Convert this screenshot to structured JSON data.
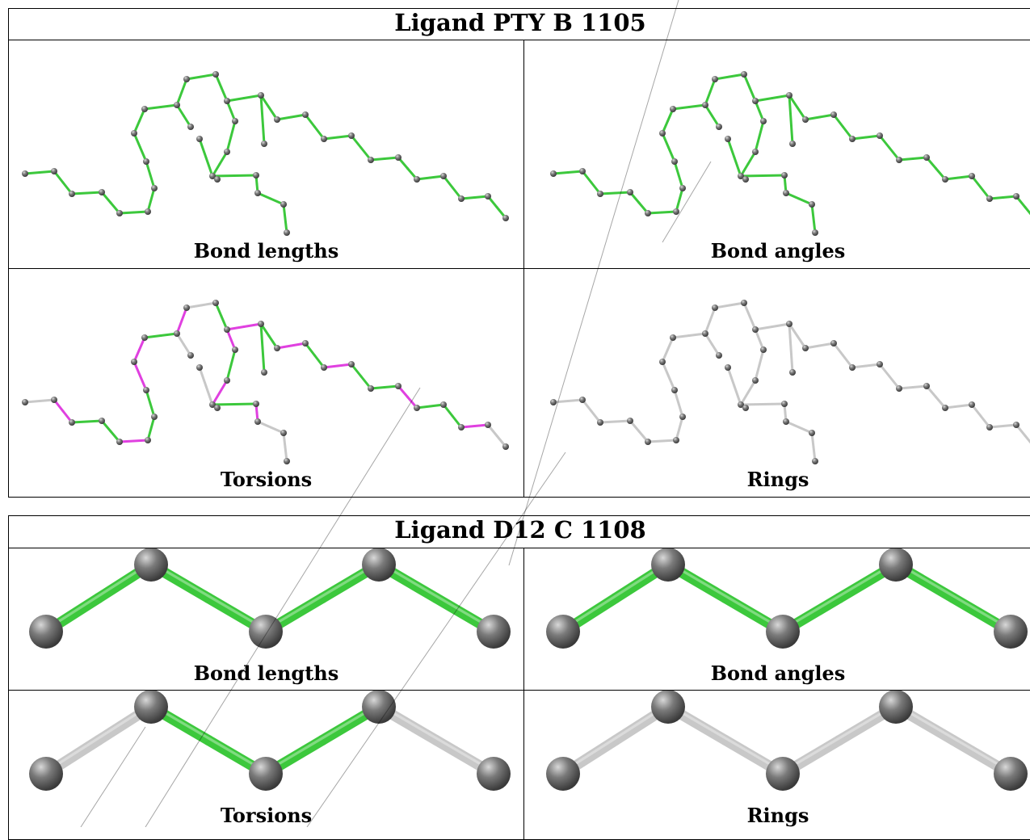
{
  "ligands": [
    {
      "title": "Ligand PTY B 1105",
      "panels": [
        "Bond lengths",
        "Bond angles",
        "Torsions",
        "Rings"
      ]
    },
    {
      "title": "Ligand D12 C 1108",
      "panels": [
        "Bond lengths",
        "Bond angles",
        "Torsions",
        "Rings"
      ]
    }
  ],
  "colors": {
    "ok_bond": "#3cc83c",
    "outlier_bond": "#e040e0",
    "neutral_bond": "#c8c8c8",
    "atom": "#7a7a7a",
    "watermark": "#e04040"
  }
}
